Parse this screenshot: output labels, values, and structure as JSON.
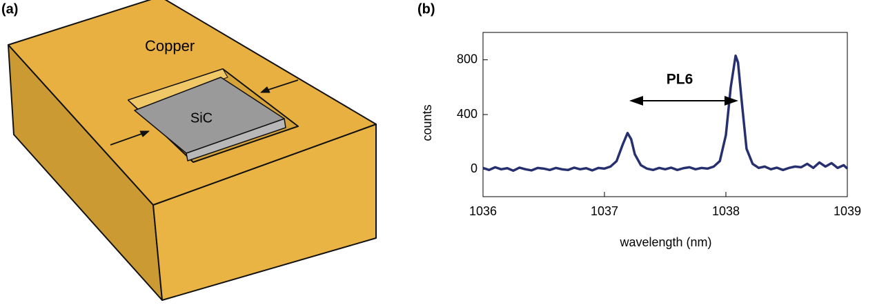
{
  "panels": {
    "a": "(a)",
    "b": "(b)"
  },
  "diagram": {
    "copper": "Copper",
    "sample": "SiC"
  },
  "chart_data": {
    "type": "line",
    "x": [
      1036.0,
      1036.05,
      1036.1,
      1036.15,
      1036.2,
      1036.25,
      1036.3,
      1036.35,
      1036.4,
      1036.45,
      1036.5,
      1036.55,
      1036.6,
      1036.65,
      1036.7,
      1036.75,
      1036.8,
      1036.85,
      1036.9,
      1036.95,
      1037.0,
      1037.05,
      1037.1,
      1037.15,
      1037.19,
      1037.22,
      1037.25,
      1037.3,
      1037.35,
      1037.4,
      1037.45,
      1037.5,
      1037.55,
      1037.6,
      1037.65,
      1037.7,
      1037.75,
      1037.8,
      1037.85,
      1037.9,
      1037.95,
      1038.0,
      1038.04,
      1038.08,
      1038.1,
      1038.13,
      1038.17,
      1038.22,
      1038.27,
      1038.32,
      1038.37,
      1038.42,
      1038.47,
      1038.52,
      1038.57,
      1038.62,
      1038.67,
      1038.72,
      1038.77,
      1038.82,
      1038.87,
      1038.92,
      1038.97,
      1039.0
    ],
    "values": [
      10,
      -5,
      15,
      0,
      8,
      -10,
      12,
      0,
      -8,
      10,
      5,
      -5,
      10,
      0,
      -5,
      12,
      0,
      8,
      -8,
      10,
      5,
      20,
      60,
      180,
      265,
      220,
      110,
      30,
      5,
      -5,
      10,
      0,
      12,
      -5,
      8,
      15,
      0,
      10,
      5,
      20,
      60,
      250,
      600,
      830,
      780,
      500,
      150,
      40,
      10,
      20,
      0,
      12,
      -5,
      10,
      20,
      15,
      40,
      10,
      50,
      20,
      45,
      10,
      30,
      5
    ],
    "color": "#27306e",
    "xlabel": "wavelength (nm)",
    "ylabel": "counts",
    "annotation": "PL6",
    "xlim": [
      1036,
      1039
    ],
    "xticks": [
      1036,
      1037,
      1038,
      1039
    ],
    "ylim": [
      -200,
      1000
    ],
    "yticks": [
      0,
      400,
      800
    ]
  }
}
